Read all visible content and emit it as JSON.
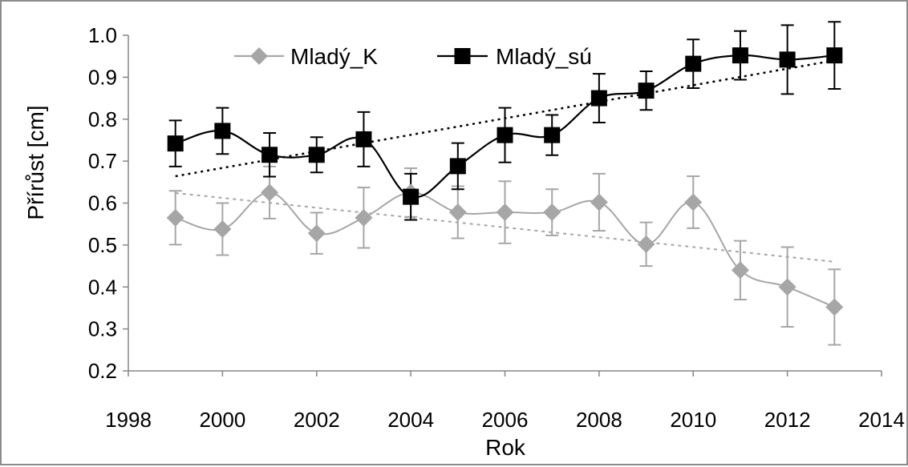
{
  "chart_data": {
    "type": "line",
    "xlabel": "Rok",
    "ylabel": "Přírůst [cm]",
    "xlim": [
      1998,
      2014
    ],
    "ylim": [
      0.2,
      1.0
    ],
    "x_ticks": [
      "1998",
      "2000",
      "2002",
      "2004",
      "2006",
      "2008",
      "2010",
      "2012",
      "2014"
    ],
    "y_ticks": [
      "0.2",
      "0.3",
      "0.4",
      "0.5",
      "0.6",
      "0.7",
      "0.8",
      "0.9",
      "1.0"
    ],
    "grid": false,
    "legend_position": "top",
    "x": [
      1999,
      2000,
      2001,
      2002,
      2003,
      2004,
      2005,
      2006,
      2007,
      2008,
      2009,
      2010,
      2011,
      2012,
      2013
    ],
    "series": [
      {
        "name": "Mladý_K",
        "marker": "diamond",
        "color": "#a6a6a6",
        "values": [
          0.565,
          0.538,
          0.625,
          0.528,
          0.565,
          0.625,
          0.578,
          0.578,
          0.578,
          0.602,
          0.502,
          0.602,
          0.44,
          0.4,
          0.352
        ],
        "error": [
          0.064,
          0.062,
          0.062,
          0.049,
          0.072,
          0.058,
          0.062,
          0.074,
          0.055,
          0.068,
          0.052,
          0.062,
          0.07,
          0.095,
          0.09
        ],
        "trend": [
          0.624,
          0.46
        ]
      },
      {
        "name": "Mladý_sú",
        "marker": "square",
        "color": "#000000",
        "values": [
          0.742,
          0.772,
          0.715,
          0.715,
          0.752,
          0.615,
          0.688,
          0.762,
          0.762,
          0.85,
          0.868,
          0.932,
          0.952,
          0.942,
          0.952
        ],
        "error": [
          0.055,
          0.055,
          0.052,
          0.042,
          0.065,
          0.055,
          0.055,
          0.065,
          0.048,
          0.058,
          0.046,
          0.058,
          0.058,
          0.082,
          0.08
        ],
        "trend": [
          0.664,
          0.94
        ]
      }
    ]
  }
}
